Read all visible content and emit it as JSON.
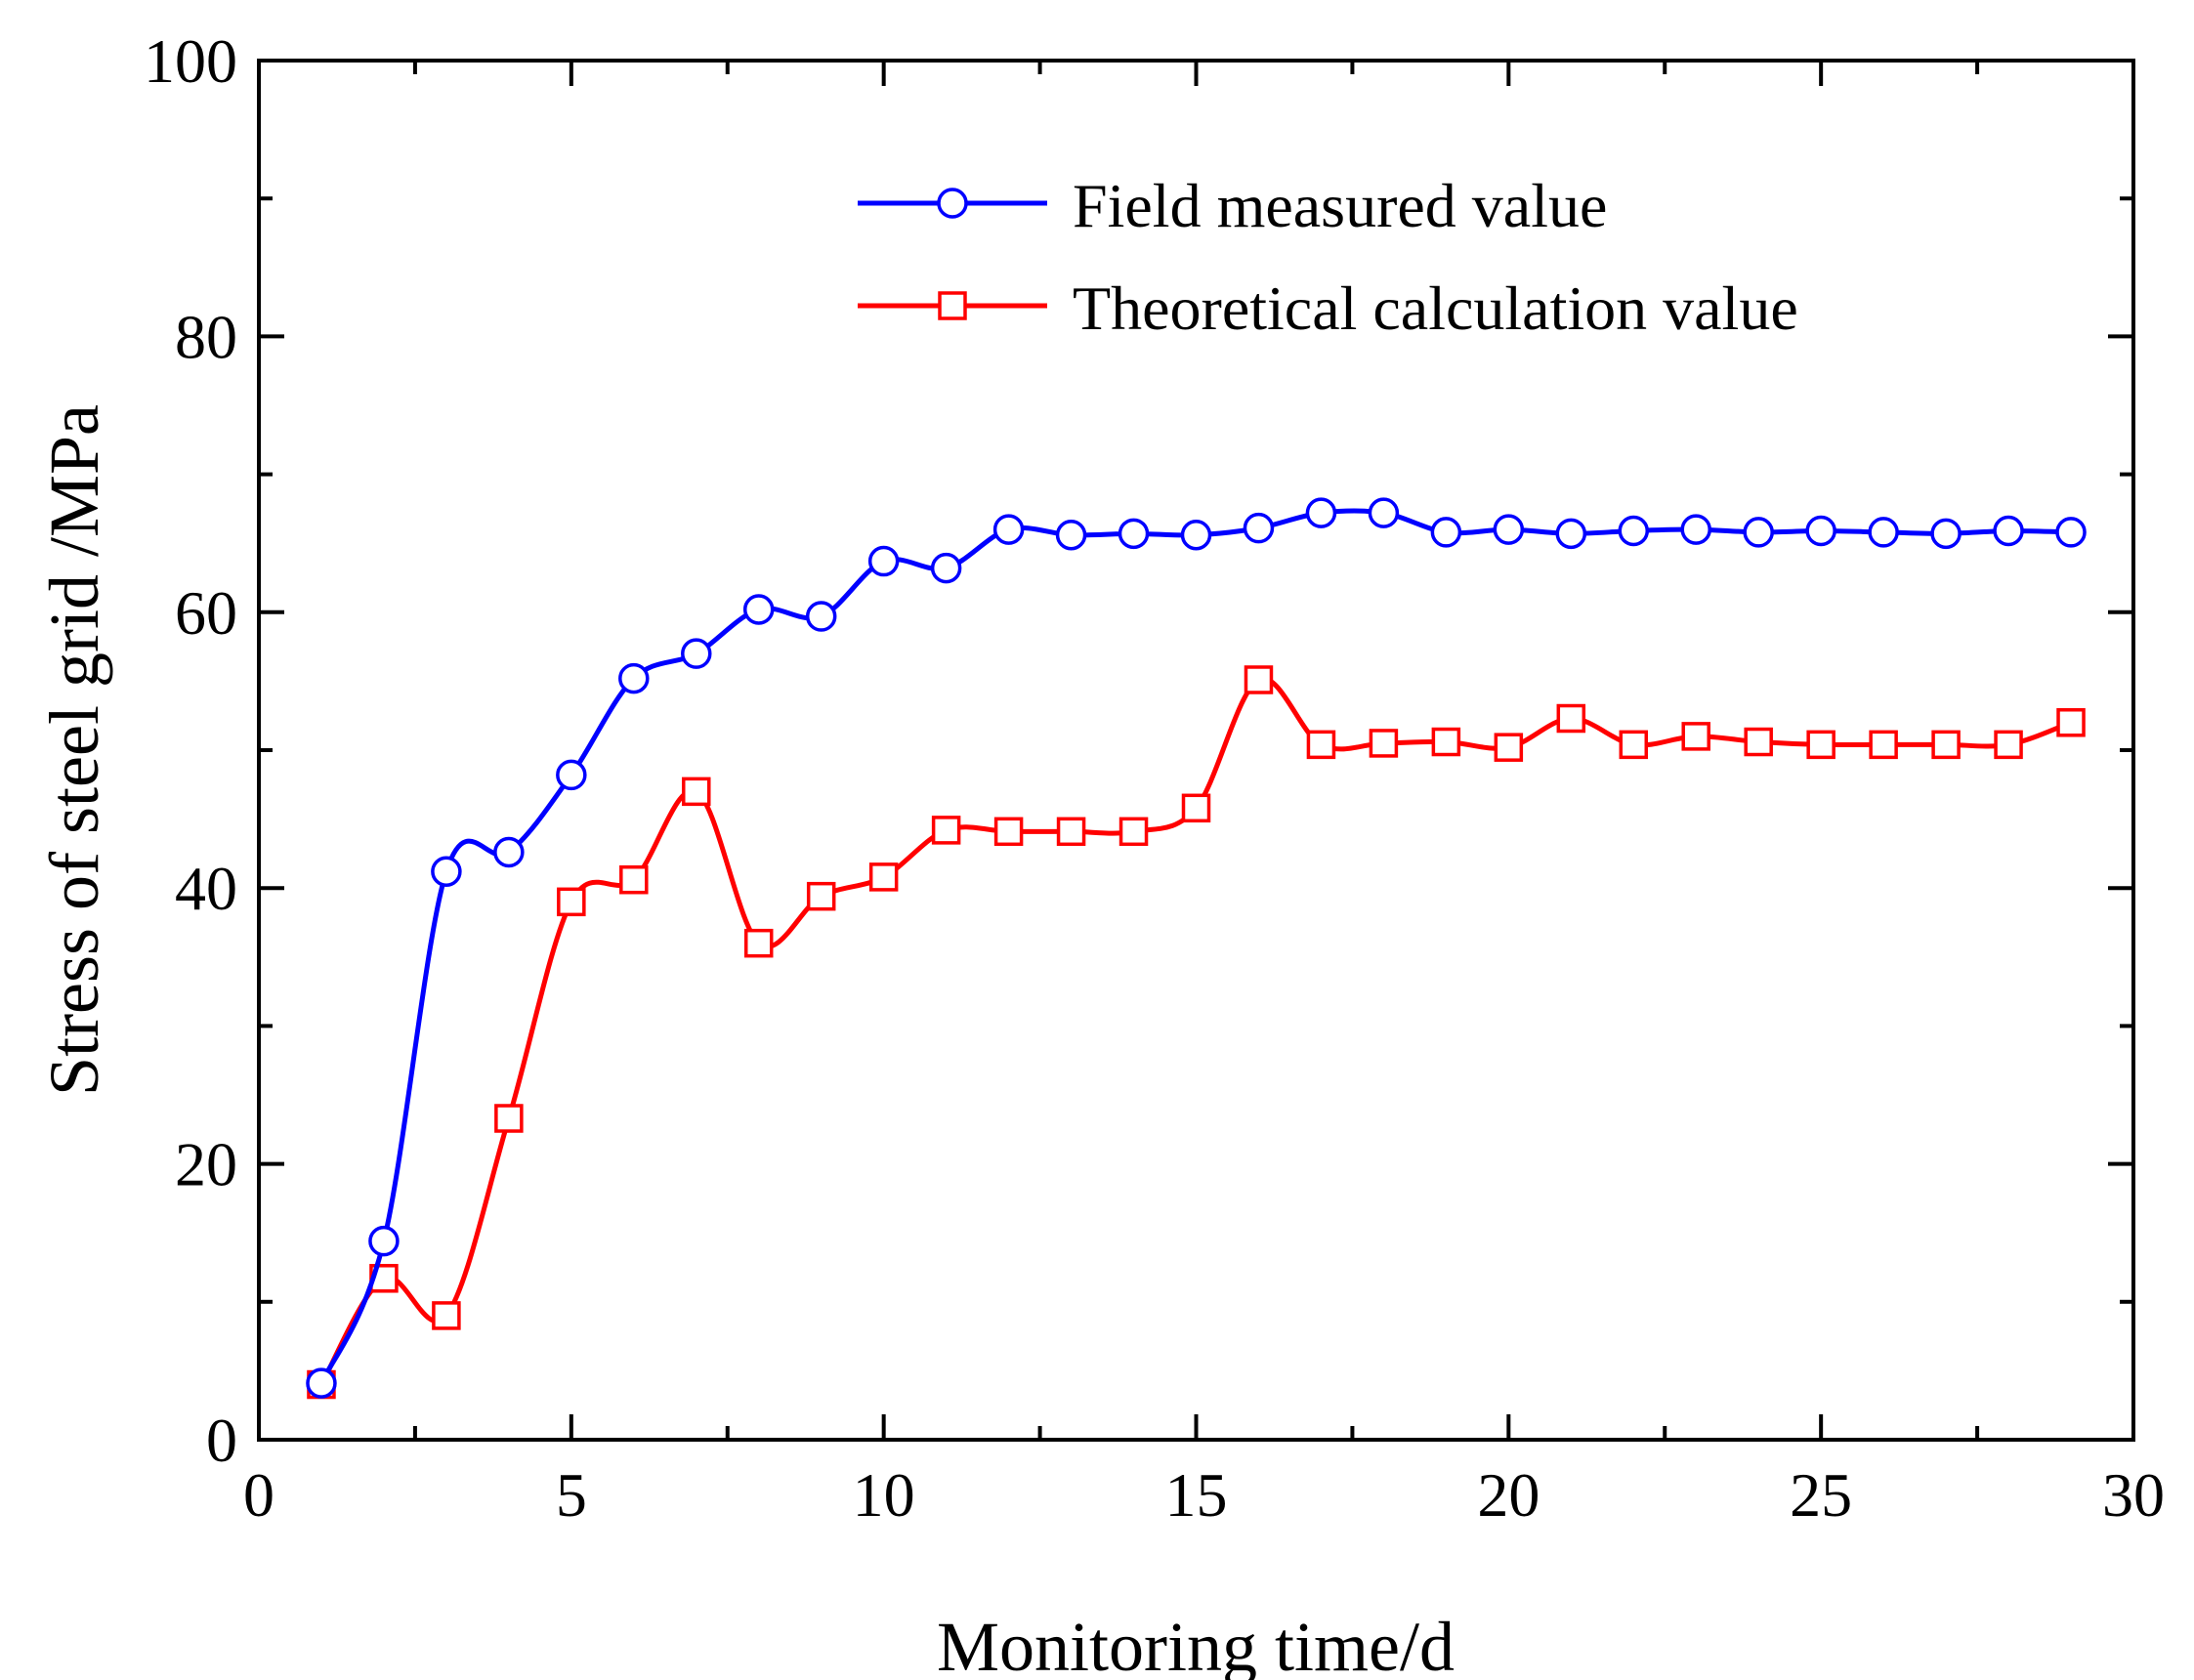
{
  "chart_data": {
    "type": "line",
    "title": "",
    "xlabel": "Monitoring time/d",
    "ylabel": "Stress of steel grid /MPa",
    "xlim": [
      0,
      30
    ],
    "ylim": [
      0,
      100
    ],
    "xticks": [
      0,
      5,
      10,
      15,
      20,
      25,
      30
    ],
    "yticks": [
      0,
      20,
      40,
      60,
      80,
      100
    ],
    "xtick_labels": [
      "0",
      "5",
      "10",
      "15",
      "20",
      "25",
      "30"
    ],
    "ytick_labels": [
      "0",
      "20",
      "40",
      "60",
      "80",
      "100"
    ],
    "legend_position": "top-right",
    "series": [
      {
        "name": "Field measured value",
        "color": "#0000ff",
        "marker": "circle",
        "x": [
          1,
          2,
          3,
          4,
          5,
          6,
          7,
          8,
          9,
          10,
          11,
          12,
          13,
          14,
          15,
          16,
          17,
          18,
          19,
          20,
          21,
          22,
          23,
          24,
          25,
          26,
          27,
          28,
          29
        ],
        "values": [
          4.1,
          14.4,
          41.2,
          42.6,
          48.2,
          55.2,
          57.0,
          60.2,
          59.7,
          63.7,
          63.2,
          66.0,
          65.6,
          65.7,
          65.6,
          66.1,
          67.2,
          67.2,
          65.8,
          66.0,
          65.7,
          65.9,
          66.0,
          65.8,
          65.9,
          65.8,
          65.7,
          65.9,
          65.8
        ]
      },
      {
        "name": "Theoretical calculation value",
        "color": "#ff0000",
        "marker": "square",
        "x": [
          1,
          2,
          3,
          4,
          5,
          6,
          7,
          8,
          9,
          10,
          11,
          12,
          13,
          14,
          15,
          16,
          17,
          18,
          19,
          20,
          21,
          22,
          23,
          24,
          25,
          26,
          27,
          28,
          29
        ],
        "values": [
          4.0,
          11.7,
          9.0,
          23.3,
          39.0,
          40.6,
          47.0,
          36.0,
          39.4,
          40.8,
          44.2,
          44.1,
          44.1,
          44.1,
          45.8,
          55.1,
          50.4,
          50.5,
          50.6,
          50.2,
          52.3,
          50.4,
          51.0,
          50.6,
          50.4,
          50.4,
          50.4,
          50.4,
          52.0
        ]
      }
    ]
  }
}
